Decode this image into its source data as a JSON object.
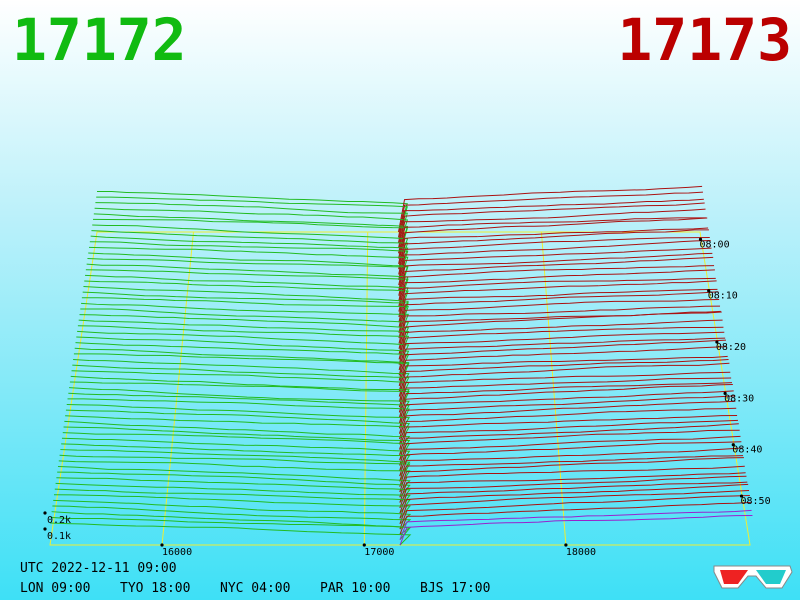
{
  "header": {
    "bid": "17172",
    "ask": "17173"
  },
  "price_labels": [
    "16000",
    "17000",
    "18000"
  ],
  "depth_labels": [
    "0.2k",
    "0.1k"
  ],
  "time_labels": [
    "08:00",
    "08:10",
    "08:20",
    "08:30",
    "08:40",
    "08:50"
  ],
  "footer": {
    "utc": "UTC 2022-12-11 09:00",
    "clocks": [
      "LON 09:00",
      "TYO 18:00",
      "NYC 04:00",
      "PAR 10:00",
      "BJS 17:00"
    ]
  }
}
